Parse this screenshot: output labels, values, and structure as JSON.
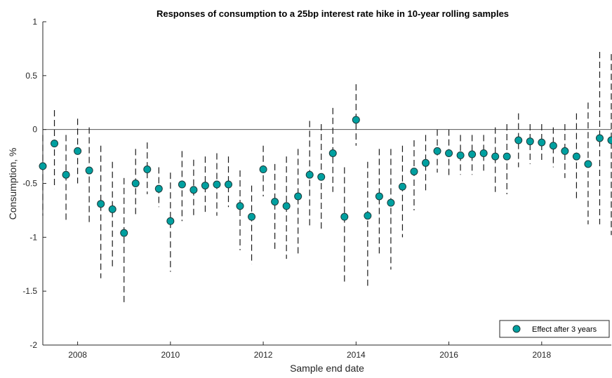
{
  "chart_data": {
    "type": "scatter",
    "title": "Responses of consumption to a 25bp interest rate hike in 10-year rolling samples",
    "xlabel": "Sample end date",
    "ylabel": "Consumption, %",
    "xlim": [
      2007.25,
      2019.5
    ],
    "ylim": [
      -2,
      1
    ],
    "xticks": [
      2008,
      2010,
      2012,
      2014,
      2016,
      2018
    ],
    "yticks": [
      -2,
      -1.5,
      -1,
      -0.5,
      0,
      0.5,
      1
    ],
    "xtick_labels": [
      "2008",
      "2010",
      "2012",
      "2014",
      "2016",
      "2018"
    ],
    "ytick_labels": [
      "-2",
      "-1.5",
      "-1",
      "-0.5",
      "0",
      "0.5",
      "1"
    ],
    "zero_line": true,
    "grid": false,
    "legend_position": "bottom-right",
    "series": [
      {
        "name": "Effect after 3 years",
        "color": "#00a0a0",
        "edge_color": "#1a3a3a",
        "x": [
          2007.25,
          2007.5,
          2007.75,
          2008.0,
          2008.25,
          2008.5,
          2008.75,
          2009.0,
          2009.25,
          2009.5,
          2009.75,
          2010.0,
          2010.25,
          2010.5,
          2010.75,
          2011.0,
          2011.25,
          2011.5,
          2011.75,
          2012.0,
          2012.25,
          2012.5,
          2012.75,
          2013.0,
          2013.25,
          2013.5,
          2013.75,
          2014.0,
          2014.25,
          2014.5,
          2014.75,
          2015.0,
          2015.25,
          2015.5,
          2015.75,
          2016.0,
          2016.25,
          2016.5,
          2016.75,
          2017.0,
          2017.25,
          2017.5,
          2017.75,
          2018.0,
          2018.25,
          2018.5,
          2018.75,
          2019.0,
          2019.25,
          2019.5
        ],
        "y": [
          -0.34,
          -0.13,
          -0.42,
          -0.2,
          -0.38,
          -0.69,
          -0.74,
          -0.96,
          -0.5,
          -0.37,
          -0.55,
          -0.85,
          -0.51,
          -0.56,
          -0.52,
          -0.51,
          -0.51,
          -0.71,
          -0.81,
          -0.37,
          -0.67,
          -0.71,
          -0.62,
          -0.42,
          -0.44,
          -0.22,
          -0.81,
          0.09,
          -0.8,
          -0.62,
          -0.68,
          -0.53,
          -0.39,
          -0.31,
          -0.2,
          -0.22,
          -0.24,
          -0.23,
          -0.22,
          -0.25,
          -0.25,
          -0.1,
          -0.11,
          -0.12,
          -0.15,
          -0.2,
          -0.25,
          -0.32,
          -0.08,
          -0.1
        ],
        "lower": [
          -0.8,
          -0.55,
          -0.85,
          -0.5,
          -0.88,
          -1.38,
          -1.28,
          -1.63,
          -0.8,
          -0.6,
          -0.72,
          -1.32,
          -0.85,
          -0.82,
          -0.78,
          -0.8,
          -0.72,
          -1.12,
          -1.25,
          -0.62,
          -1.12,
          -1.2,
          -1.15,
          -0.92,
          -0.95,
          -0.58,
          -1.42,
          -0.15,
          -1.45,
          -1.18,
          -1.3,
          -1.0,
          -0.75,
          -0.58,
          -0.4,
          -0.45,
          -0.42,
          -0.42,
          -0.4,
          -0.58,
          -0.6,
          -0.35,
          -0.32,
          -0.3,
          -0.35,
          -0.45,
          -0.65,
          -0.88,
          -0.88,
          -0.98
        ],
        "upper": [
          -0.05,
          0.18,
          -0.05,
          0.1,
          0.02,
          -0.15,
          -0.3,
          -0.45,
          -0.18,
          -0.12,
          -0.35,
          -0.4,
          -0.2,
          -0.28,
          -0.25,
          -0.22,
          -0.25,
          -0.38,
          -0.52,
          -0.15,
          -0.32,
          -0.25,
          -0.18,
          0.08,
          0.05,
          0.2,
          -0.35,
          0.42,
          -0.3,
          -0.18,
          -0.18,
          -0.15,
          -0.1,
          -0.05,
          0.0,
          0.0,
          -0.05,
          -0.05,
          -0.05,
          0.02,
          0.05,
          0.15,
          0.05,
          0.05,
          0.02,
          0.05,
          0.15,
          0.25,
          0.72,
          0.7
        ]
      }
    ]
  }
}
